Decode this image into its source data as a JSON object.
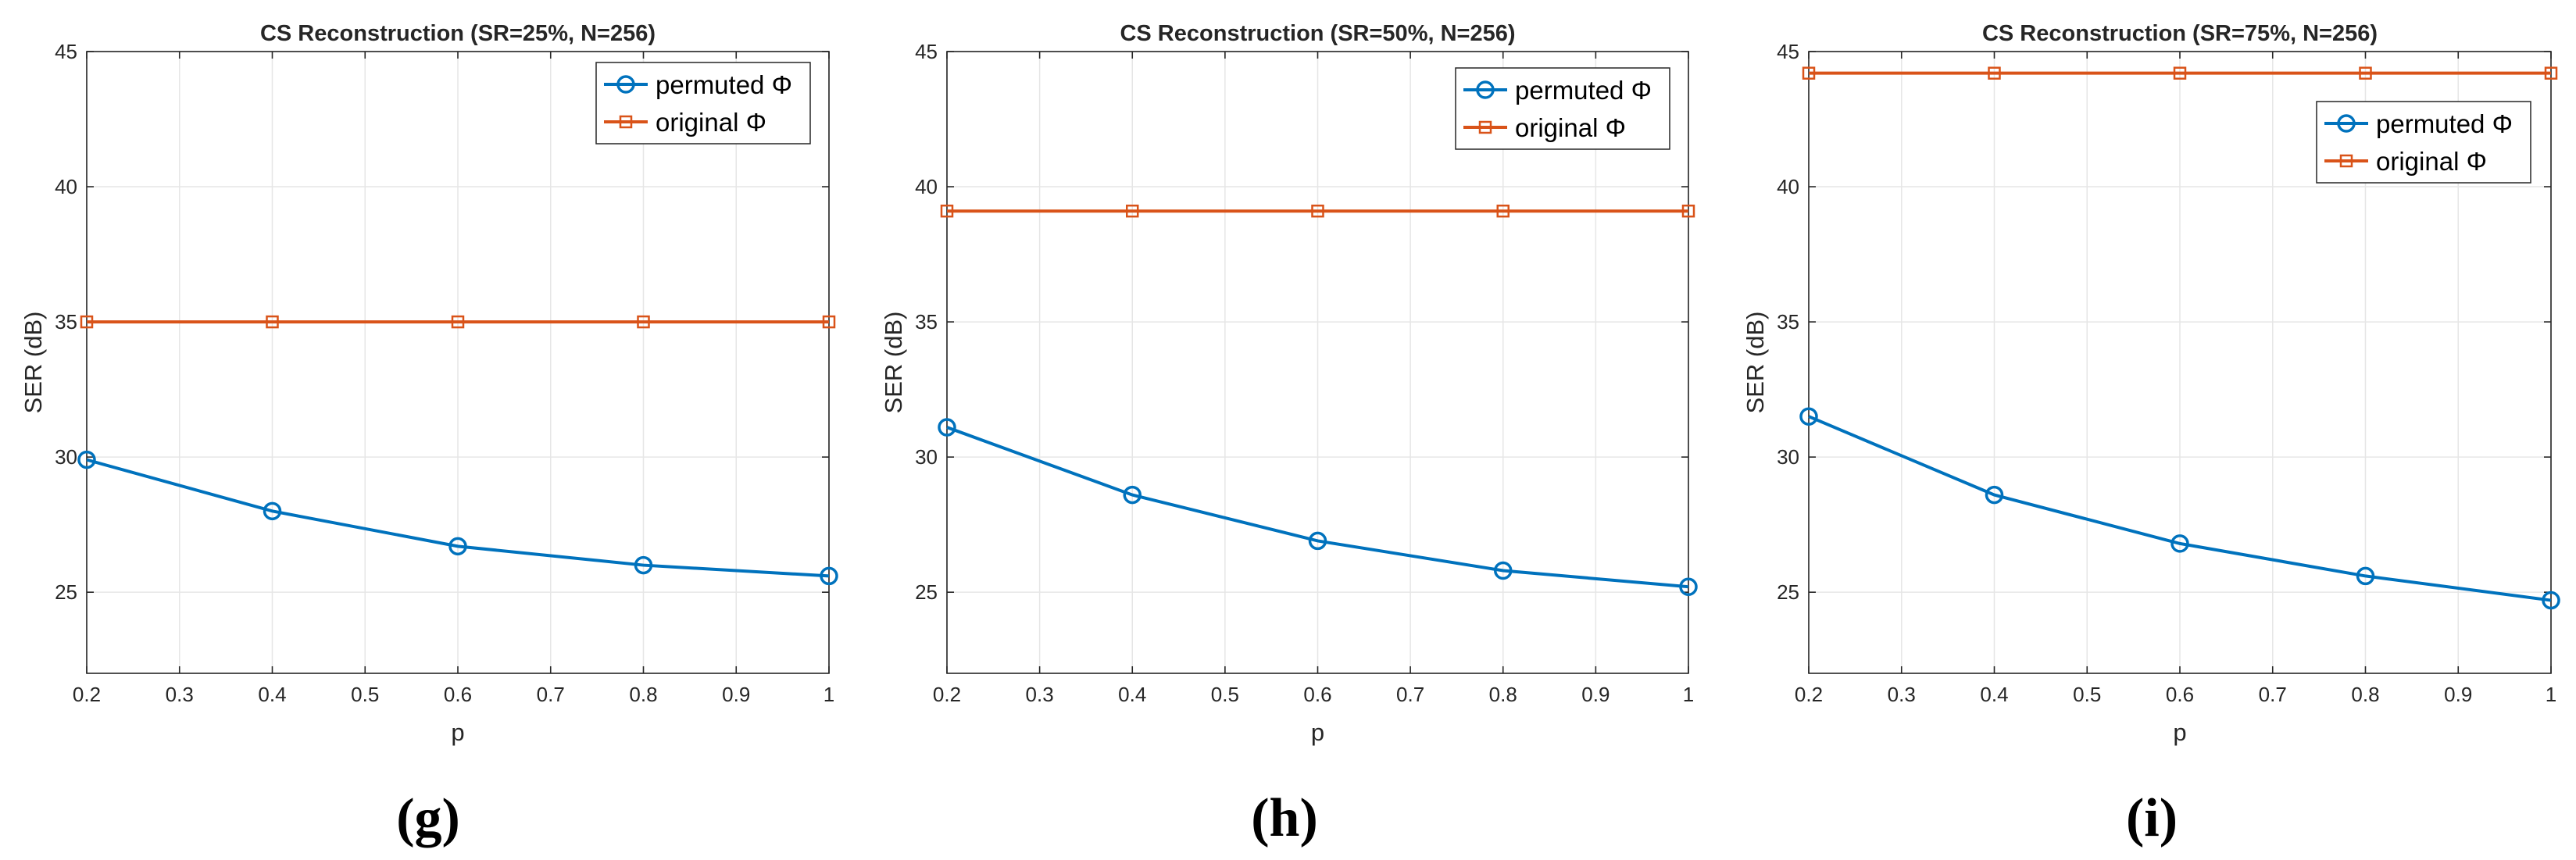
{
  "colors": {
    "permuted": "#0072BD",
    "original": "#D95319",
    "grid": "#e6e6e6",
    "axis": "#262626"
  },
  "chart_data": [
    {
      "type": "line",
      "panel_label": "(g)",
      "title": "CS Reconstruction (SR=25%, N=256)",
      "xlabel": "p",
      "ylabel": "SER (dB)",
      "x": [
        0.2,
        0.4,
        0.6,
        0.8,
        1.0
      ],
      "xlim": [
        0.2,
        1.0
      ],
      "ylim": [
        22,
        45
      ],
      "xticks": [
        0.2,
        0.3,
        0.4,
        0.5,
        0.6,
        0.7,
        0.8,
        0.9,
        1.0
      ],
      "xtick_labels": [
        "0.2",
        "0.3",
        "0.4",
        "0.5",
        "0.6",
        "0.7",
        "0.8",
        "0.9",
        "1"
      ],
      "yticks": [
        25,
        30,
        35,
        40,
        45
      ],
      "ytick_labels": [
        "25",
        "30",
        "35",
        "40",
        "45"
      ],
      "grid": true,
      "legend_position": "top-right",
      "series": [
        {
          "name": "permuted Φ",
          "marker": "circle",
          "values": [
            29.9,
            28.0,
            26.7,
            26.0,
            25.6
          ]
        },
        {
          "name": "original Φ",
          "marker": "square",
          "values": [
            35.0,
            35.0,
            35.0,
            35.0,
            35.0
          ]
        }
      ]
    },
    {
      "type": "line",
      "panel_label": "(h)",
      "title": "CS Reconstruction (SR=50%, N=256)",
      "xlabel": "p",
      "ylabel": "SER (dB)",
      "x": [
        0.2,
        0.4,
        0.6,
        0.8,
        1.0
      ],
      "xlim": [
        0.2,
        1.0
      ],
      "ylim": [
        22,
        45
      ],
      "xticks": [
        0.2,
        0.3,
        0.4,
        0.5,
        0.6,
        0.7,
        0.8,
        0.9,
        1.0
      ],
      "xtick_labels": [
        "0.2",
        "0.3",
        "0.4",
        "0.5",
        "0.6",
        "0.7",
        "0.8",
        "0.9",
        "1"
      ],
      "yticks": [
        25,
        30,
        35,
        40,
        45
      ],
      "ytick_labels": [
        "25",
        "30",
        "35",
        "40",
        "45"
      ],
      "grid": true,
      "legend_position": "top-right",
      "series": [
        {
          "name": "permuted Φ",
          "marker": "circle",
          "values": [
            31.1,
            28.6,
            26.9,
            25.8,
            25.2
          ]
        },
        {
          "name": "original Φ",
          "marker": "square",
          "values": [
            39.1,
            39.1,
            39.1,
            39.1,
            39.1
          ]
        }
      ]
    },
    {
      "type": "line",
      "panel_label": "(i)",
      "title": "CS Reconstruction (SR=75%, N=256)",
      "xlabel": "p",
      "ylabel": "SER (dB)",
      "x": [
        0.2,
        0.4,
        0.6,
        0.8,
        1.0
      ],
      "xlim": [
        0.2,
        1.0
      ],
      "ylim": [
        22,
        45
      ],
      "xticks": [
        0.2,
        0.3,
        0.4,
        0.5,
        0.6,
        0.7,
        0.8,
        0.9,
        1.0
      ],
      "xtick_labels": [
        "0.2",
        "0.3",
        "0.4",
        "0.5",
        "0.6",
        "0.7",
        "0.8",
        "0.9",
        "1"
      ],
      "yticks": [
        25,
        30,
        35,
        40,
        45
      ],
      "ytick_labels": [
        "25",
        "30",
        "35",
        "40",
        "45"
      ],
      "grid": true,
      "legend_position": "upper-right",
      "series": [
        {
          "name": "permuted Φ",
          "marker": "circle",
          "values": [
            31.5,
            28.6,
            26.8,
            25.6,
            24.7
          ]
        },
        {
          "name": "original Φ",
          "marker": "square",
          "values": [
            44.2,
            44.2,
            44.2,
            44.2,
            44.2
          ]
        }
      ]
    }
  ]
}
